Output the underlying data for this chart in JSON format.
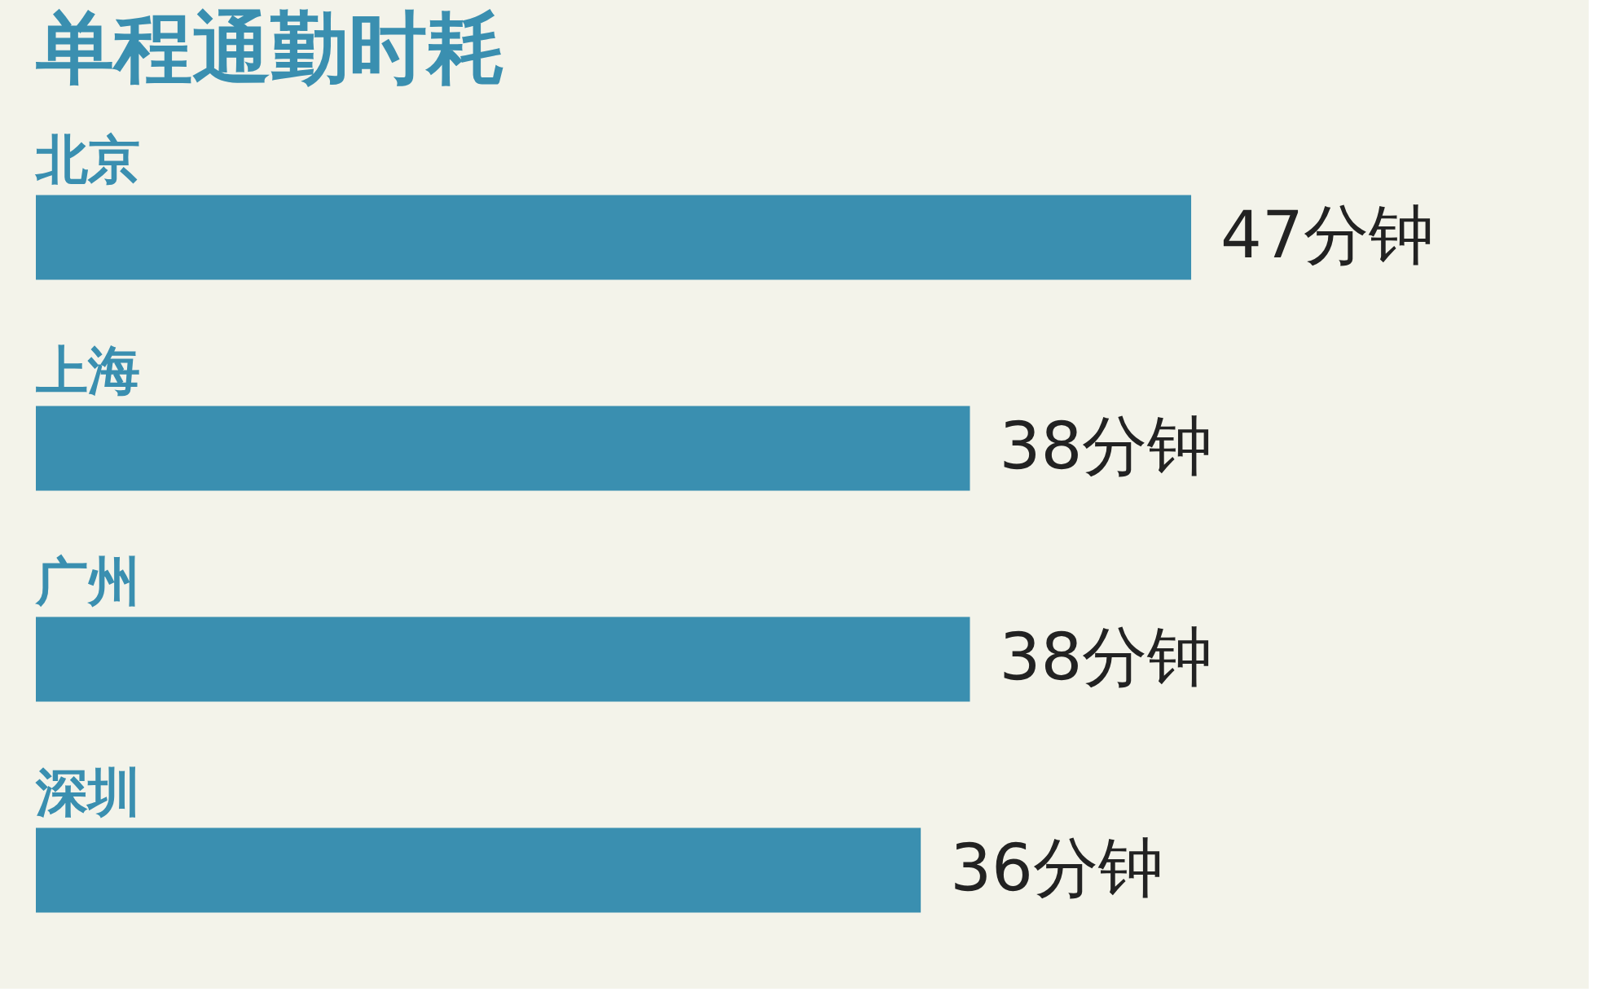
{
  "chart_data": {
    "type": "bar",
    "orientation": "horizontal",
    "title": "单程通勤时耗",
    "categories": [
      "北京",
      "上海",
      "广州",
      "深圳"
    ],
    "values": [
      47,
      38,
      38,
      36
    ],
    "value_labels": [
      "47分钟",
      "38分钟",
      "38分钟",
      "36分钟"
    ],
    "color": "#3a8fb0"
  }
}
